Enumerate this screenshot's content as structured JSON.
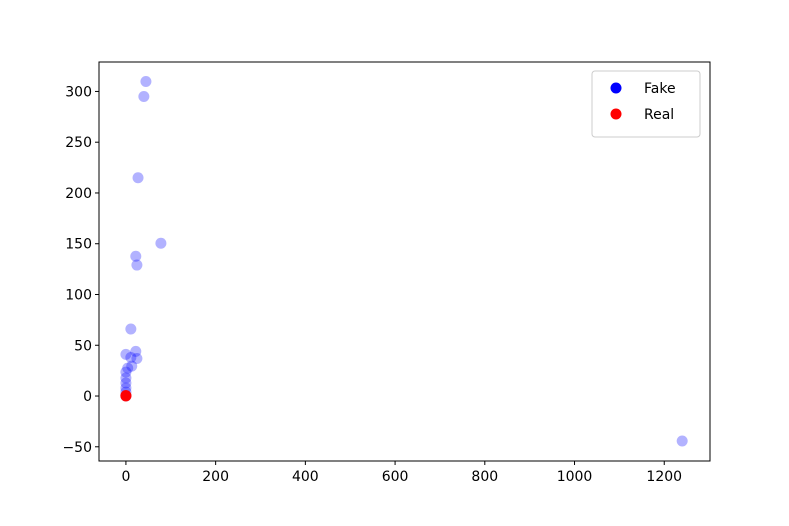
{
  "chart_data": {
    "type": "scatter",
    "xlim": [
      -60,
      1302
    ],
    "ylim": [
      -64,
      329
    ],
    "xticks": [
      0,
      200,
      400,
      600,
      800,
      1000,
      1200
    ],
    "yticks": [
      {
        "value": -50,
        "label": "−50"
      },
      0,
      50,
      100,
      150,
      200,
      250,
      300
    ],
    "alpha": 0.3,
    "legend": "upper right",
    "series": [
      {
        "name": "Fake",
        "color": "blue",
        "x": [
          44.6,
          40,
          27,
          78,
          22,
          24.5,
          11,
          22,
          24.5,
          0,
          11,
          13,
          4,
          0,
          0,
          0,
          0,
          0,
          0,
          1240
        ],
        "values": [
          309.8,
          295,
          215,
          150.5,
          137.7,
          129,
          66,
          44,
          37,
          41,
          38,
          29.5,
          27.5,
          23.6,
          17.7,
          12.8,
          7.9,
          3.9,
          0,
          -44.3
        ]
      },
      {
        "name": "Real",
        "color": "red",
        "x": [
          0,
          0
        ],
        "values": [
          0,
          0.5
        ]
      }
    ]
  }
}
